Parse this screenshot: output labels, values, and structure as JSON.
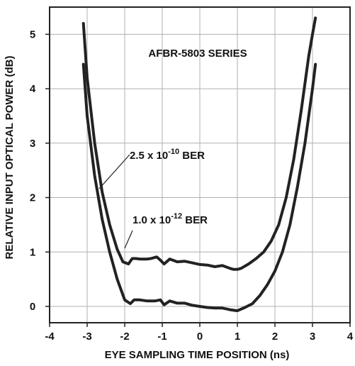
{
  "chart_data": {
    "type": "line",
    "title": "AFBR-5803 SERIES",
    "xlabel": "EYE SAMPLING TIME POSITION (ns)",
    "ylabel": "RELATIVE INPUT OPTICAL POWER (dB)",
    "xlim": [
      -4,
      4
    ],
    "ylim": [
      -0.3,
      5.5
    ],
    "xticks": [
      "-4",
      "-3",
      "-2",
      "-1",
      "0",
      "1",
      "2",
      "3",
      "4"
    ],
    "yticks": [
      "0",
      "1",
      "2",
      "3",
      "4",
      "5"
    ],
    "grid": true,
    "colors": {
      "series": "#222222",
      "grid": "#b0b0b0",
      "frame": "#222222"
    },
    "series": [
      {
        "name": "2.5 x 10-10 BER",
        "label_base": "2.5 x 10",
        "label_exp": "-10",
        "label_tail": " BER",
        "x": [
          -3.1,
          -3.0,
          -2.8,
          -2.6,
          -2.4,
          -2.2,
          -2.05,
          -1.9,
          -1.8,
          -1.7,
          -1.6,
          -1.4,
          -1.3,
          -1.15,
          -1.05,
          -0.95,
          -0.8,
          -0.6,
          -0.4,
          -0.2,
          0.0,
          0.2,
          0.4,
          0.6,
          0.8,
          0.9,
          1.0,
          1.1,
          1.3,
          1.5,
          1.7,
          1.9,
          2.1,
          2.3,
          2.5,
          2.7,
          2.9,
          3.0,
          3.08
        ],
        "y": [
          5.2,
          4.2,
          3.0,
          2.1,
          1.5,
          1.05,
          0.82,
          0.78,
          0.88,
          0.88,
          0.87,
          0.87,
          0.88,
          0.91,
          0.85,
          0.78,
          0.87,
          0.82,
          0.83,
          0.8,
          0.77,
          0.76,
          0.73,
          0.75,
          0.7,
          0.68,
          0.68,
          0.7,
          0.78,
          0.88,
          1.0,
          1.2,
          1.5,
          2.0,
          2.7,
          3.6,
          4.6,
          5.0,
          5.3
        ]
      },
      {
        "name": "1.0 x 10-12 BER",
        "label_base": "1.0 x 10",
        "label_exp": "-12",
        "label_tail": " BER",
        "x": [
          -3.1,
          -3.0,
          -2.8,
          -2.6,
          -2.4,
          -2.2,
          -2.0,
          -1.85,
          -1.75,
          -1.6,
          -1.4,
          -1.2,
          -1.05,
          -0.95,
          -0.8,
          -0.6,
          -0.4,
          -0.2,
          0.0,
          0.2,
          0.4,
          0.6,
          0.8,
          1.0,
          1.2,
          1.4,
          1.6,
          1.8,
          2.0,
          2.2,
          2.4,
          2.6,
          2.8,
          3.0,
          3.08
        ],
        "y": [
          4.45,
          3.5,
          2.4,
          1.6,
          1.0,
          0.5,
          0.12,
          0.05,
          0.12,
          0.12,
          0.1,
          0.1,
          0.12,
          0.03,
          0.1,
          0.06,
          0.06,
          0.02,
          0.0,
          -0.02,
          -0.03,
          -0.03,
          -0.06,
          -0.08,
          -0.02,
          0.05,
          0.2,
          0.4,
          0.65,
          1.0,
          1.5,
          2.2,
          3.0,
          4.0,
          4.45
        ]
      }
    ]
  }
}
